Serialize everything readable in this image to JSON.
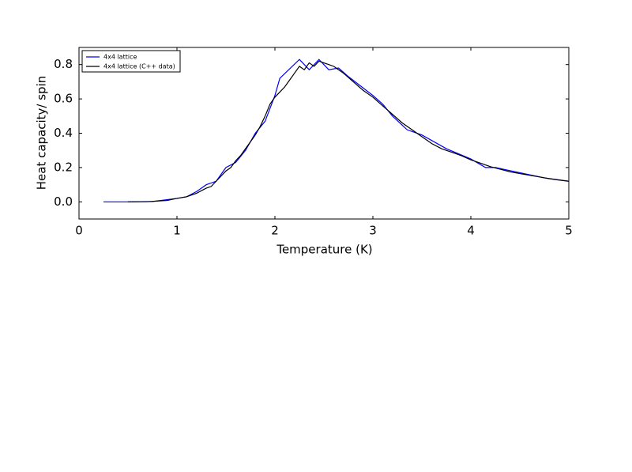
{
  "chart_data": {
    "type": "line",
    "xlabel": "Temperature (K)",
    "ylabel": "Heat capacity/ spin",
    "xlim": [
      0,
      5
    ],
    "ylim": [
      -0.1,
      0.9
    ],
    "xticks": [
      0,
      1,
      2,
      3,
      4,
      5
    ],
    "yticks": [
      {
        "value": 0,
        "label": "0.0"
      },
      0.2,
      0.4,
      0.6,
      0.8
    ],
    "legend": "upper left",
    "series": [
      {
        "name": "4x4 lattice",
        "color": "#0000ff",
        "x": [
          0.25,
          0.5,
          0.75,
          1.0,
          1.1,
          1.2,
          1.3,
          1.4,
          1.5,
          1.6,
          1.7,
          1.8,
          1.9,
          2.0,
          2.05,
          2.25,
          2.35,
          2.45,
          2.55,
          2.65,
          2.75,
          3.0,
          3.1,
          3.2,
          3.35,
          3.5,
          3.75,
          4.0,
          4.15,
          4.25,
          4.5,
          4.75,
          5.0
        ],
        "values": [
          0,
          0,
          0.002,
          0.02,
          0.03,
          0.06,
          0.1,
          0.12,
          0.2,
          0.23,
          0.3,
          0.4,
          0.47,
          0.62,
          0.72,
          0.83,
          0.77,
          0.83,
          0.77,
          0.78,
          0.73,
          0.62,
          0.57,
          0.5,
          0.42,
          0.39,
          0.31,
          0.25,
          0.2,
          0.2,
          0.17,
          0.14,
          0.12
        ]
      },
      {
        "name": "4x4 lattice (C++ data)",
        "color": "#000000",
        "x": [
          0.5,
          0.7,
          0.9,
          1.0,
          1.1,
          1.2,
          1.3,
          1.35,
          1.4,
          1.45,
          1.5,
          1.55,
          1.6,
          1.65,
          1.7,
          1.75,
          1.8,
          1.85,
          1.9,
          1.95,
          2.0,
          2.05,
          2.1,
          2.15,
          2.2,
          2.25,
          2.3,
          2.35,
          2.4,
          2.45,
          2.5,
          2.55,
          2.6,
          2.65,
          2.7,
          2.8,
          2.9,
          3.0,
          3.1,
          3.2,
          3.3,
          3.4,
          3.5,
          3.6,
          3.7,
          3.8,
          3.9,
          4.0,
          4.1,
          4.2,
          4.3,
          4.4,
          4.5,
          4.6,
          4.7,
          4.8,
          4.9,
          5.0
        ],
        "values": [
          0,
          0.001,
          0.008,
          0.02,
          0.03,
          0.05,
          0.08,
          0.09,
          0.12,
          0.15,
          0.18,
          0.2,
          0.24,
          0.27,
          0.31,
          0.35,
          0.39,
          0.44,
          0.5,
          0.57,
          0.61,
          0.64,
          0.67,
          0.71,
          0.75,
          0.79,
          0.77,
          0.81,
          0.79,
          0.82,
          0.81,
          0.8,
          0.79,
          0.77,
          0.75,
          0.7,
          0.65,
          0.61,
          0.56,
          0.51,
          0.46,
          0.42,
          0.38,
          0.34,
          0.31,
          0.29,
          0.27,
          0.245,
          0.225,
          0.205,
          0.19,
          0.175,
          0.165,
          0.155,
          0.145,
          0.135,
          0.127,
          0.12
        ]
      }
    ]
  }
}
